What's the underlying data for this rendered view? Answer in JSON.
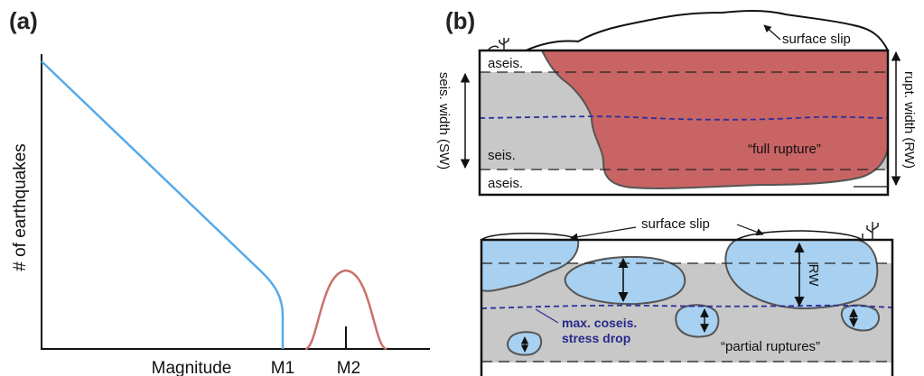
{
  "panel_a": {
    "label": "(a)",
    "ylabel": "# of earthquakes",
    "xlabel": "Magnitude",
    "m1_label": "M1",
    "m2_label": "M2",
    "colors": {
      "decay_curve": "#55aaea",
      "bell_curve": "#c9706a"
    }
  },
  "panel_b": {
    "label": "(b)",
    "top": {
      "surface_slip": "surface slip",
      "aseis_top": "aseis.",
      "seis": "seis.",
      "aseis_bottom": "aseis.",
      "full_rupture": "“full rupture”",
      "seis_width": "seis. width (SW)",
      "rupt_width": "rupt. width (RW)",
      "colors": {
        "rupture": "#c96464",
        "seismogenic": "#c8c8c8"
      }
    },
    "bottom": {
      "surface_slip": "surface slip",
      "rw": "RW",
      "stress_drop_line1": "max. coseis.",
      "stress_drop_line2": "stress drop",
      "partial_ruptures": "“partial ruptures”",
      "colors": {
        "patch": "#a8d0f0",
        "stress_line": "#2e2e9e"
      }
    }
  }
}
